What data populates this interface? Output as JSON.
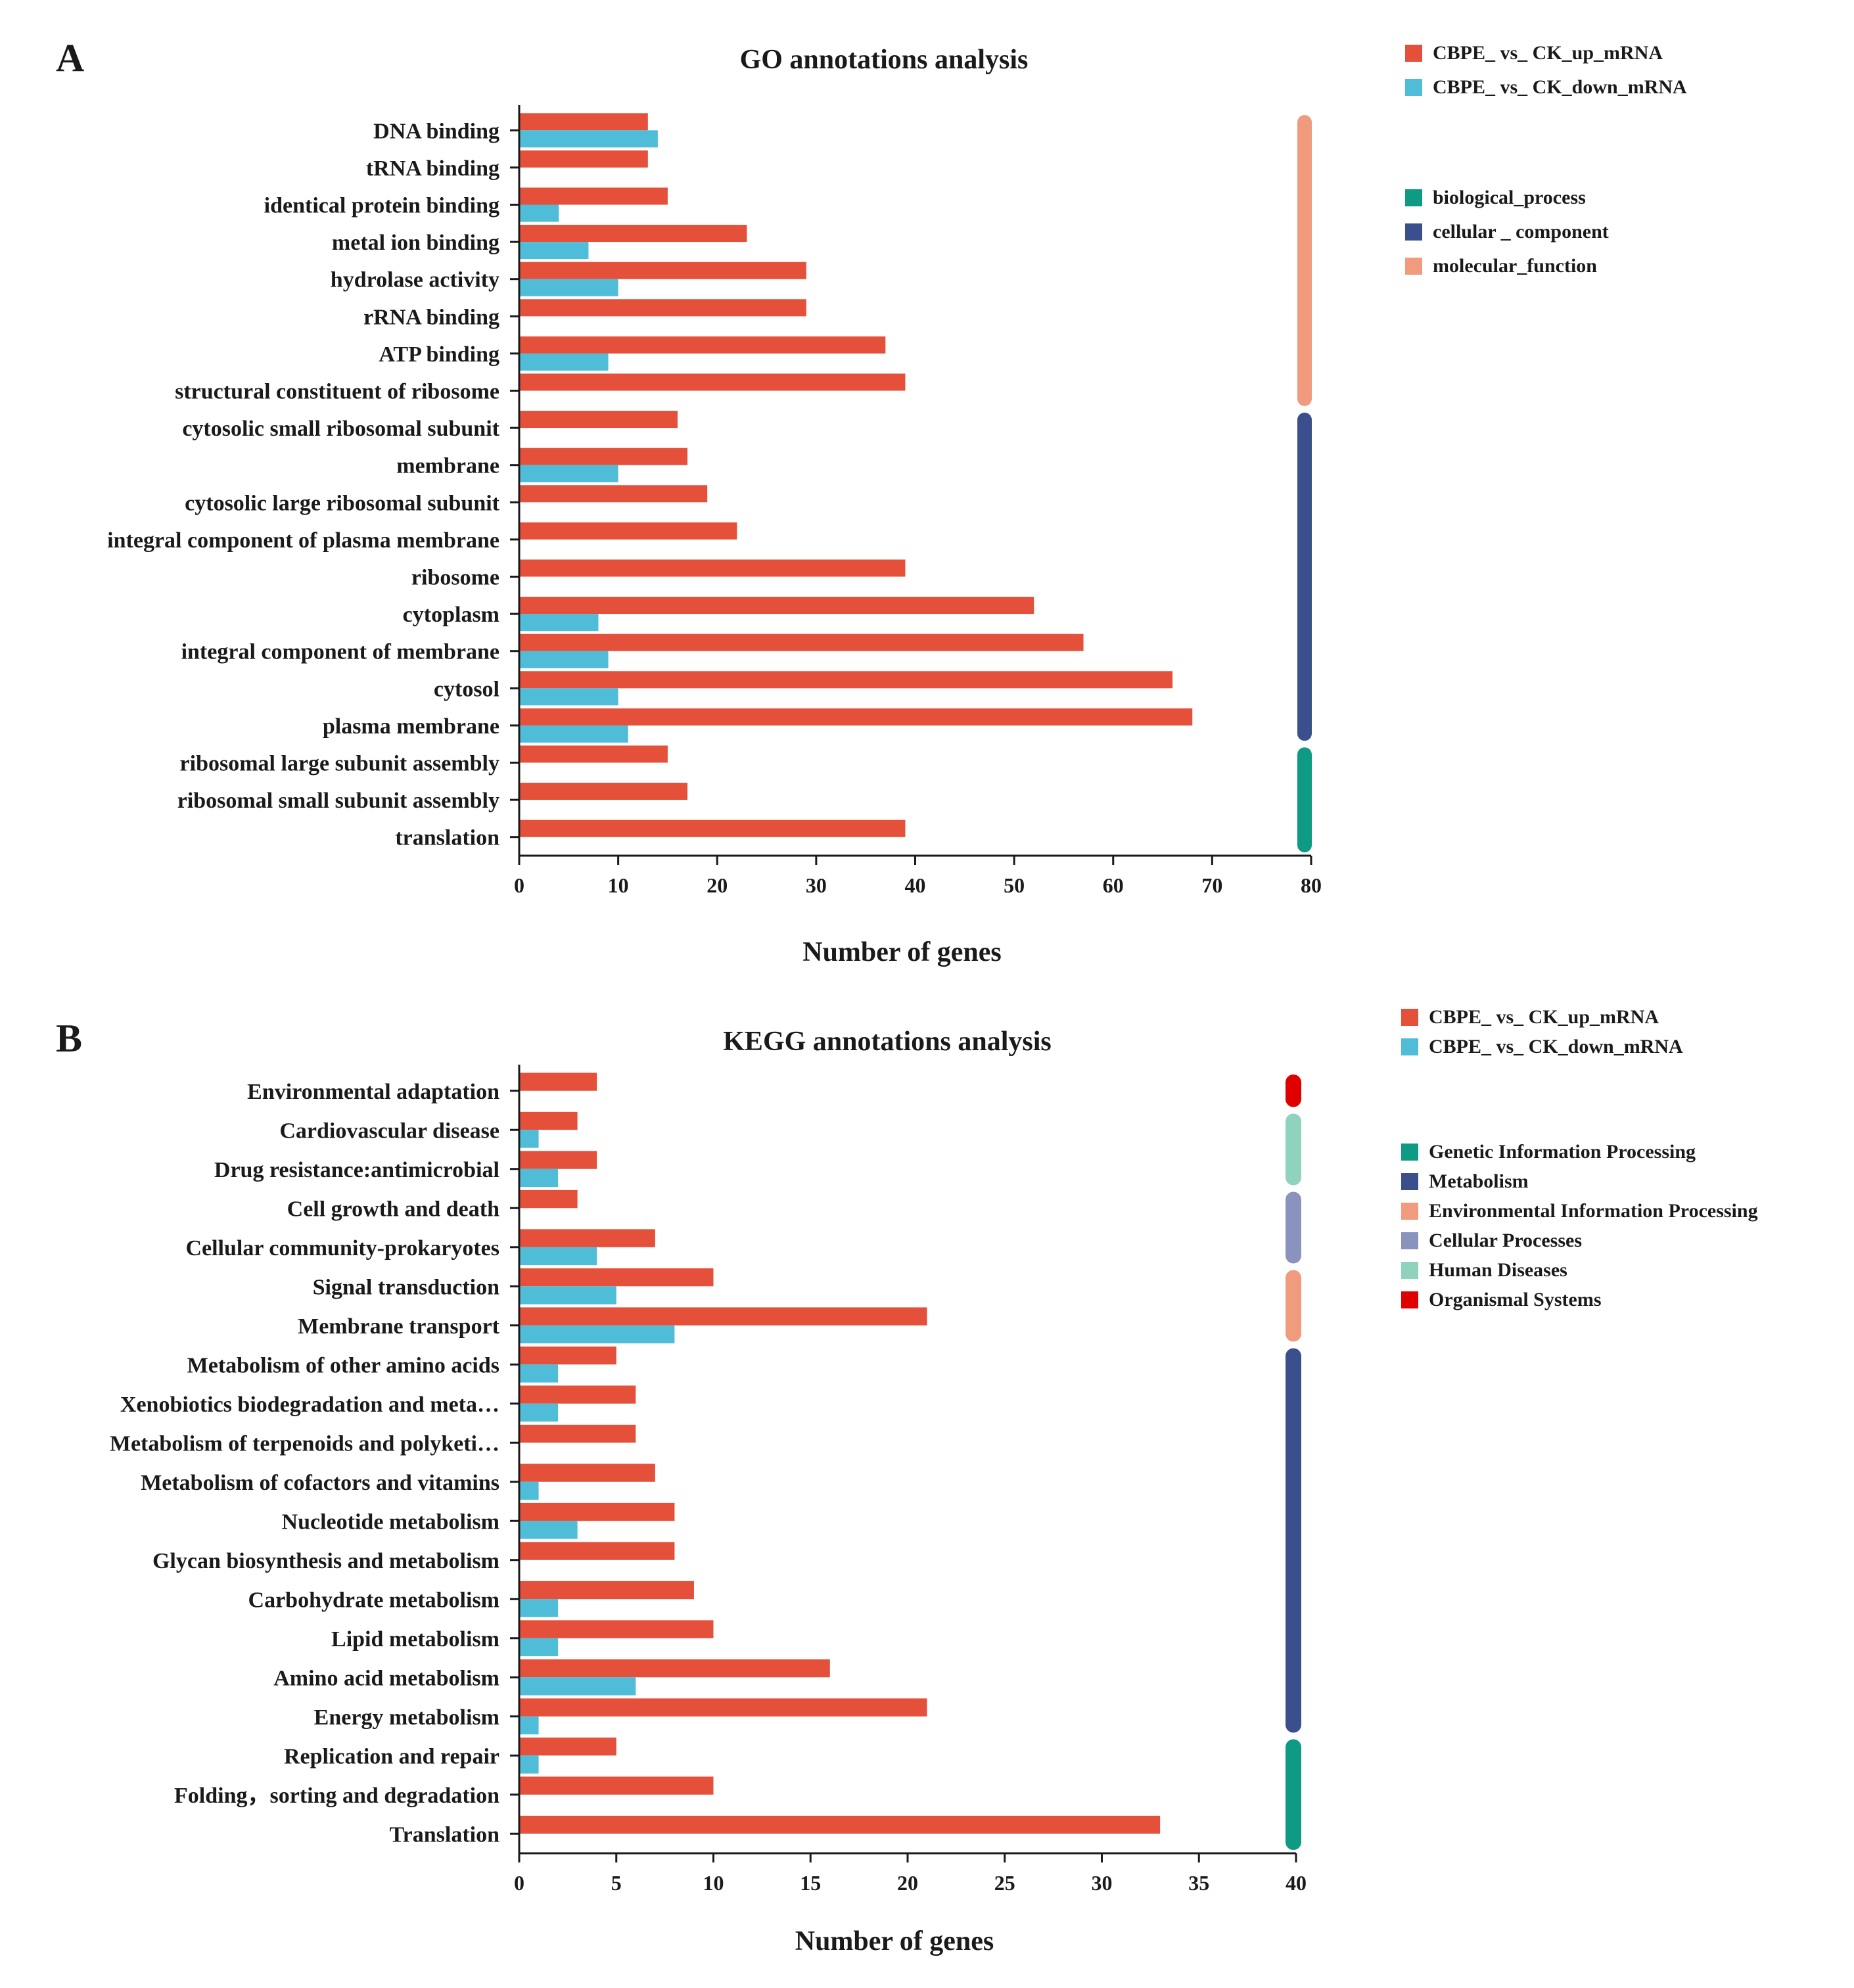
{
  "chart_data": [
    {
      "type": "bar",
      "orientation": "horizontal",
      "panel_label": "A",
      "title": "GO annotations analysis",
      "xlabel": "Number of genes",
      "ylabel": "",
      "xlim": [
        0,
        80
      ],
      "xticks": [
        0,
        10,
        20,
        30,
        40,
        50,
        60,
        70,
        80
      ],
      "grid": false,
      "categories": [
        "DNA binding",
        "tRNA binding",
        "identical protein binding",
        "metal ion binding",
        "hydrolase activity",
        "rRNA binding",
        "ATP binding",
        "structural constituent of ribosome",
        "cytosolic small ribosomal subunit",
        "membrane",
        "cytosolic large ribosomal subunit",
        "integral component of plasma membrane",
        "ribosome",
        "cytoplasm",
        "integral component of membrane",
        "cytosol",
        "plasma membrane",
        "ribosomal large subunit assembly",
        "ribosomal small subunit assembly",
        "translation"
      ],
      "series": [
        {
          "name": "CBPE_ vs_ CK_up_mRNA",
          "color": "#e4503a",
          "values": [
            13,
            13,
            15,
            23,
            29,
            29,
            37,
            39,
            16,
            17,
            19,
            22,
            39,
            52,
            57,
            66,
            68,
            15,
            17,
            39
          ]
        },
        {
          "name": "CBPE_ vs_ CK_down_mRNA",
          "color": "#4fbcd8",
          "values": [
            14,
            0,
            4,
            7,
            10,
            0,
            9,
            0,
            0,
            10,
            0,
            0,
            0,
            8,
            9,
            10,
            11,
            0,
            0,
            0
          ]
        }
      ],
      "groups": [
        {
          "name": "biological_process",
          "color": "#0e9a83",
          "categories": [
            "ribosomal large subunit assembly",
            "ribosomal small subunit assembly",
            "translation"
          ]
        },
        {
          "name": "cellular _ component",
          "color": "#3b4f8c",
          "categories": [
            "cytosolic small ribosomal subunit",
            "membrane",
            "cytosolic large ribosomal subunit",
            "integral component of plasma membrane",
            "ribosome",
            "cytoplasm",
            "integral component of membrane",
            "cytosol",
            "plasma membrane"
          ]
        },
        {
          "name": "molecular_function",
          "color": "#f19b7e",
          "categories": [
            "DNA binding",
            "tRNA binding",
            "identical protein binding",
            "metal ion binding",
            "hydrolase activity",
            "rRNA binding",
            "ATP binding",
            "structural constituent of ribosome"
          ]
        }
      ],
      "legend_placement": "right"
    },
    {
      "type": "bar",
      "orientation": "horizontal",
      "panel_label": "B",
      "title": "KEGG annotations analysis",
      "xlabel": "Number of genes",
      "ylabel": "",
      "xlim": [
        0,
        40
      ],
      "xticks": [
        0,
        5,
        10,
        15,
        20,
        25,
        30,
        35,
        40
      ],
      "grid": false,
      "categories": [
        "Environmental adaptation",
        "Cardiovascular disease",
        "Drug resistance:antimicrobial",
        "Cell growth and death",
        "Cellular community-prokaryotes",
        "Signal transduction",
        "Membrane transport",
        "Metabolism of other amino acids",
        "Xenobiotics biodegradation and meta…",
        "Metabolism of terpenoids and polyketi…",
        "Metabolism of cofactors and vitamins",
        "Nucleotide metabolism",
        "Glycan biosynthesis and metabolism",
        "Carbohydrate metabolism",
        "Lipid metabolism",
        "Amino acid metabolism",
        "Energy metabolism",
        "Replication and repair",
        "Folding，sorting and degradation",
        "Translation"
      ],
      "series": [
        {
          "name": "CBPE_ vs_ CK_up_mRNA",
          "color": "#e4503a",
          "values": [
            4,
            3,
            4,
            3,
            7,
            10,
            21,
            5,
            6,
            6,
            7,
            8,
            8,
            9,
            10,
            16,
            21,
            5,
            10,
            33
          ]
        },
        {
          "name": "CBPE_ vs_ CK_down_mRNA",
          "color": "#4fbcd8",
          "values": [
            0,
            1,
            2,
            0,
            4,
            5,
            8,
            2,
            2,
            0,
            1,
            3,
            0,
            2,
            2,
            6,
            1,
            1,
            0,
            0
          ]
        }
      ],
      "groups": [
        {
          "name": "Genetic Information Processing",
          "color": "#0e9a83",
          "categories": [
            "Replication and repair",
            "Folding，sorting and degradation",
            "Translation"
          ]
        },
        {
          "name": "Metabolism",
          "color": "#3b4f8c",
          "categories": [
            "Metabolism of other amino acids",
            "Xenobiotics biodegradation and meta…",
            "Metabolism of terpenoids and polyketi…",
            "Metabolism of cofactors and vitamins",
            "Nucleotide metabolism",
            "Glycan biosynthesis and metabolism",
            "Carbohydrate metabolism",
            "Lipid metabolism",
            "Amino acid metabolism",
            "Energy metabolism"
          ]
        },
        {
          "name": "Environmental Information Processing",
          "color": "#f19b7e",
          "categories": [
            "Signal transduction",
            "Membrane transport"
          ]
        },
        {
          "name": "Cellular Processes",
          "color": "#8a93bd",
          "categories": [
            "Cell growth and death",
            "Cellular community-prokaryotes"
          ]
        },
        {
          "name": "Human Diseases",
          "color": "#8fd2bd",
          "categories": [
            "Cardiovascular disease",
            "Drug resistance:antimicrobial"
          ]
        },
        {
          "name": "Organismal Systems",
          "color": "#e00000",
          "categories": [
            "Environmental adaptation"
          ]
        }
      ],
      "legend_placement": "right"
    }
  ]
}
